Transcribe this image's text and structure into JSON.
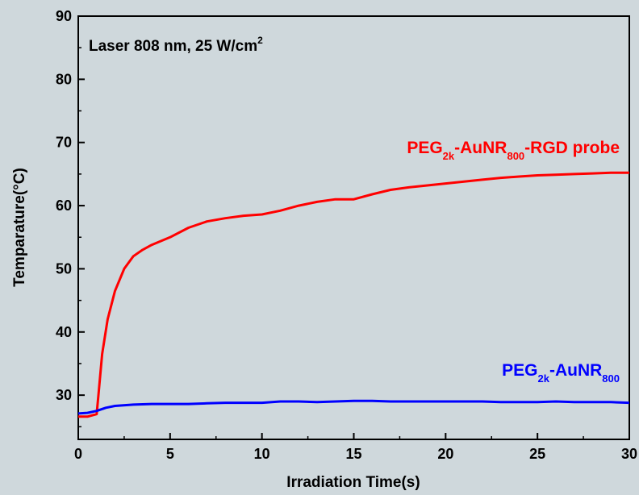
{
  "chart_data": {
    "type": "line",
    "title": "",
    "xlabel": "Irradiation Time(s)",
    "ylabel": "Temparature(°C)",
    "xlim": [
      0,
      30
    ],
    "ylim": [
      23,
      90
    ],
    "xticks": [
      0,
      5,
      10,
      15,
      20,
      25,
      30
    ],
    "yticks": [
      30,
      40,
      50,
      60,
      70,
      80,
      90
    ],
    "grid": false,
    "annotation": {
      "base": "Laser 808 nm, 25 W/cm",
      "sup": "2"
    },
    "series": [
      {
        "name": "PEG2k-AuNR800-RGD probe",
        "label_parts": [
          {
            "t": "PEG",
            "s": "base"
          },
          {
            "t": "2k",
            "s": "sub"
          },
          {
            "t": "-AuNR",
            "s": "base"
          },
          {
            "t": "800",
            "s": "sub"
          },
          {
            "t": "-RGD probe",
            "s": "base"
          }
        ],
        "color": "#ff0000",
        "x": [
          0,
          0.5,
          1.0,
          1.1,
          1.3,
          1.6,
          2.0,
          2.5,
          3.0,
          3.5,
          4.0,
          5.0,
          6.0,
          7.0,
          8.0,
          9.0,
          10.0,
          11.0,
          12.0,
          13.0,
          14.0,
          15.0,
          16.0,
          17.0,
          18.0,
          19.0,
          20.0,
          21.0,
          22.0,
          23.0,
          24.0,
          25.0,
          26.0,
          27.0,
          28.0,
          29.0,
          30.0
        ],
        "y": [
          26.6,
          26.6,
          27.0,
          30.0,
          36.5,
          42.0,
          46.5,
          50.0,
          52.0,
          53.0,
          53.8,
          55.0,
          56.5,
          57.5,
          58.0,
          58.4,
          58.6,
          59.2,
          60.0,
          60.6,
          61.0,
          61.0,
          61.8,
          62.5,
          62.9,
          63.2,
          63.5,
          63.8,
          64.1,
          64.4,
          64.6,
          64.8,
          64.9,
          65.0,
          65.1,
          65.2,
          65.2
        ]
      },
      {
        "name": "PEG2k-AuNR800",
        "label_parts": [
          {
            "t": "PEG",
            "s": "base"
          },
          {
            "t": "2k",
            "s": "sub"
          },
          {
            "t": "-AuNR",
            "s": "base"
          },
          {
            "t": "800",
            "s": "sub"
          }
        ],
        "color": "#0000ff",
        "x": [
          0,
          0.5,
          1.0,
          1.5,
          2.0,
          3.0,
          4.0,
          5.0,
          6.0,
          7.0,
          8.0,
          9.0,
          10.0,
          11.0,
          12.0,
          13.0,
          14.0,
          15.0,
          16.0,
          17.0,
          18.0,
          19.0,
          20.0,
          21.0,
          22.0,
          23.0,
          24.0,
          25.0,
          26.0,
          27.0,
          28.0,
          29.0,
          30.0
        ],
        "y": [
          27.1,
          27.2,
          27.5,
          28.0,
          28.3,
          28.5,
          28.6,
          28.6,
          28.6,
          28.7,
          28.8,
          28.8,
          28.8,
          29.0,
          29.0,
          28.9,
          29.0,
          29.1,
          29.1,
          29.0,
          29.0,
          29.0,
          29.0,
          29.0,
          29.0,
          28.9,
          28.9,
          28.9,
          29.0,
          28.9,
          28.9,
          28.9,
          28.8
        ]
      }
    ]
  }
}
